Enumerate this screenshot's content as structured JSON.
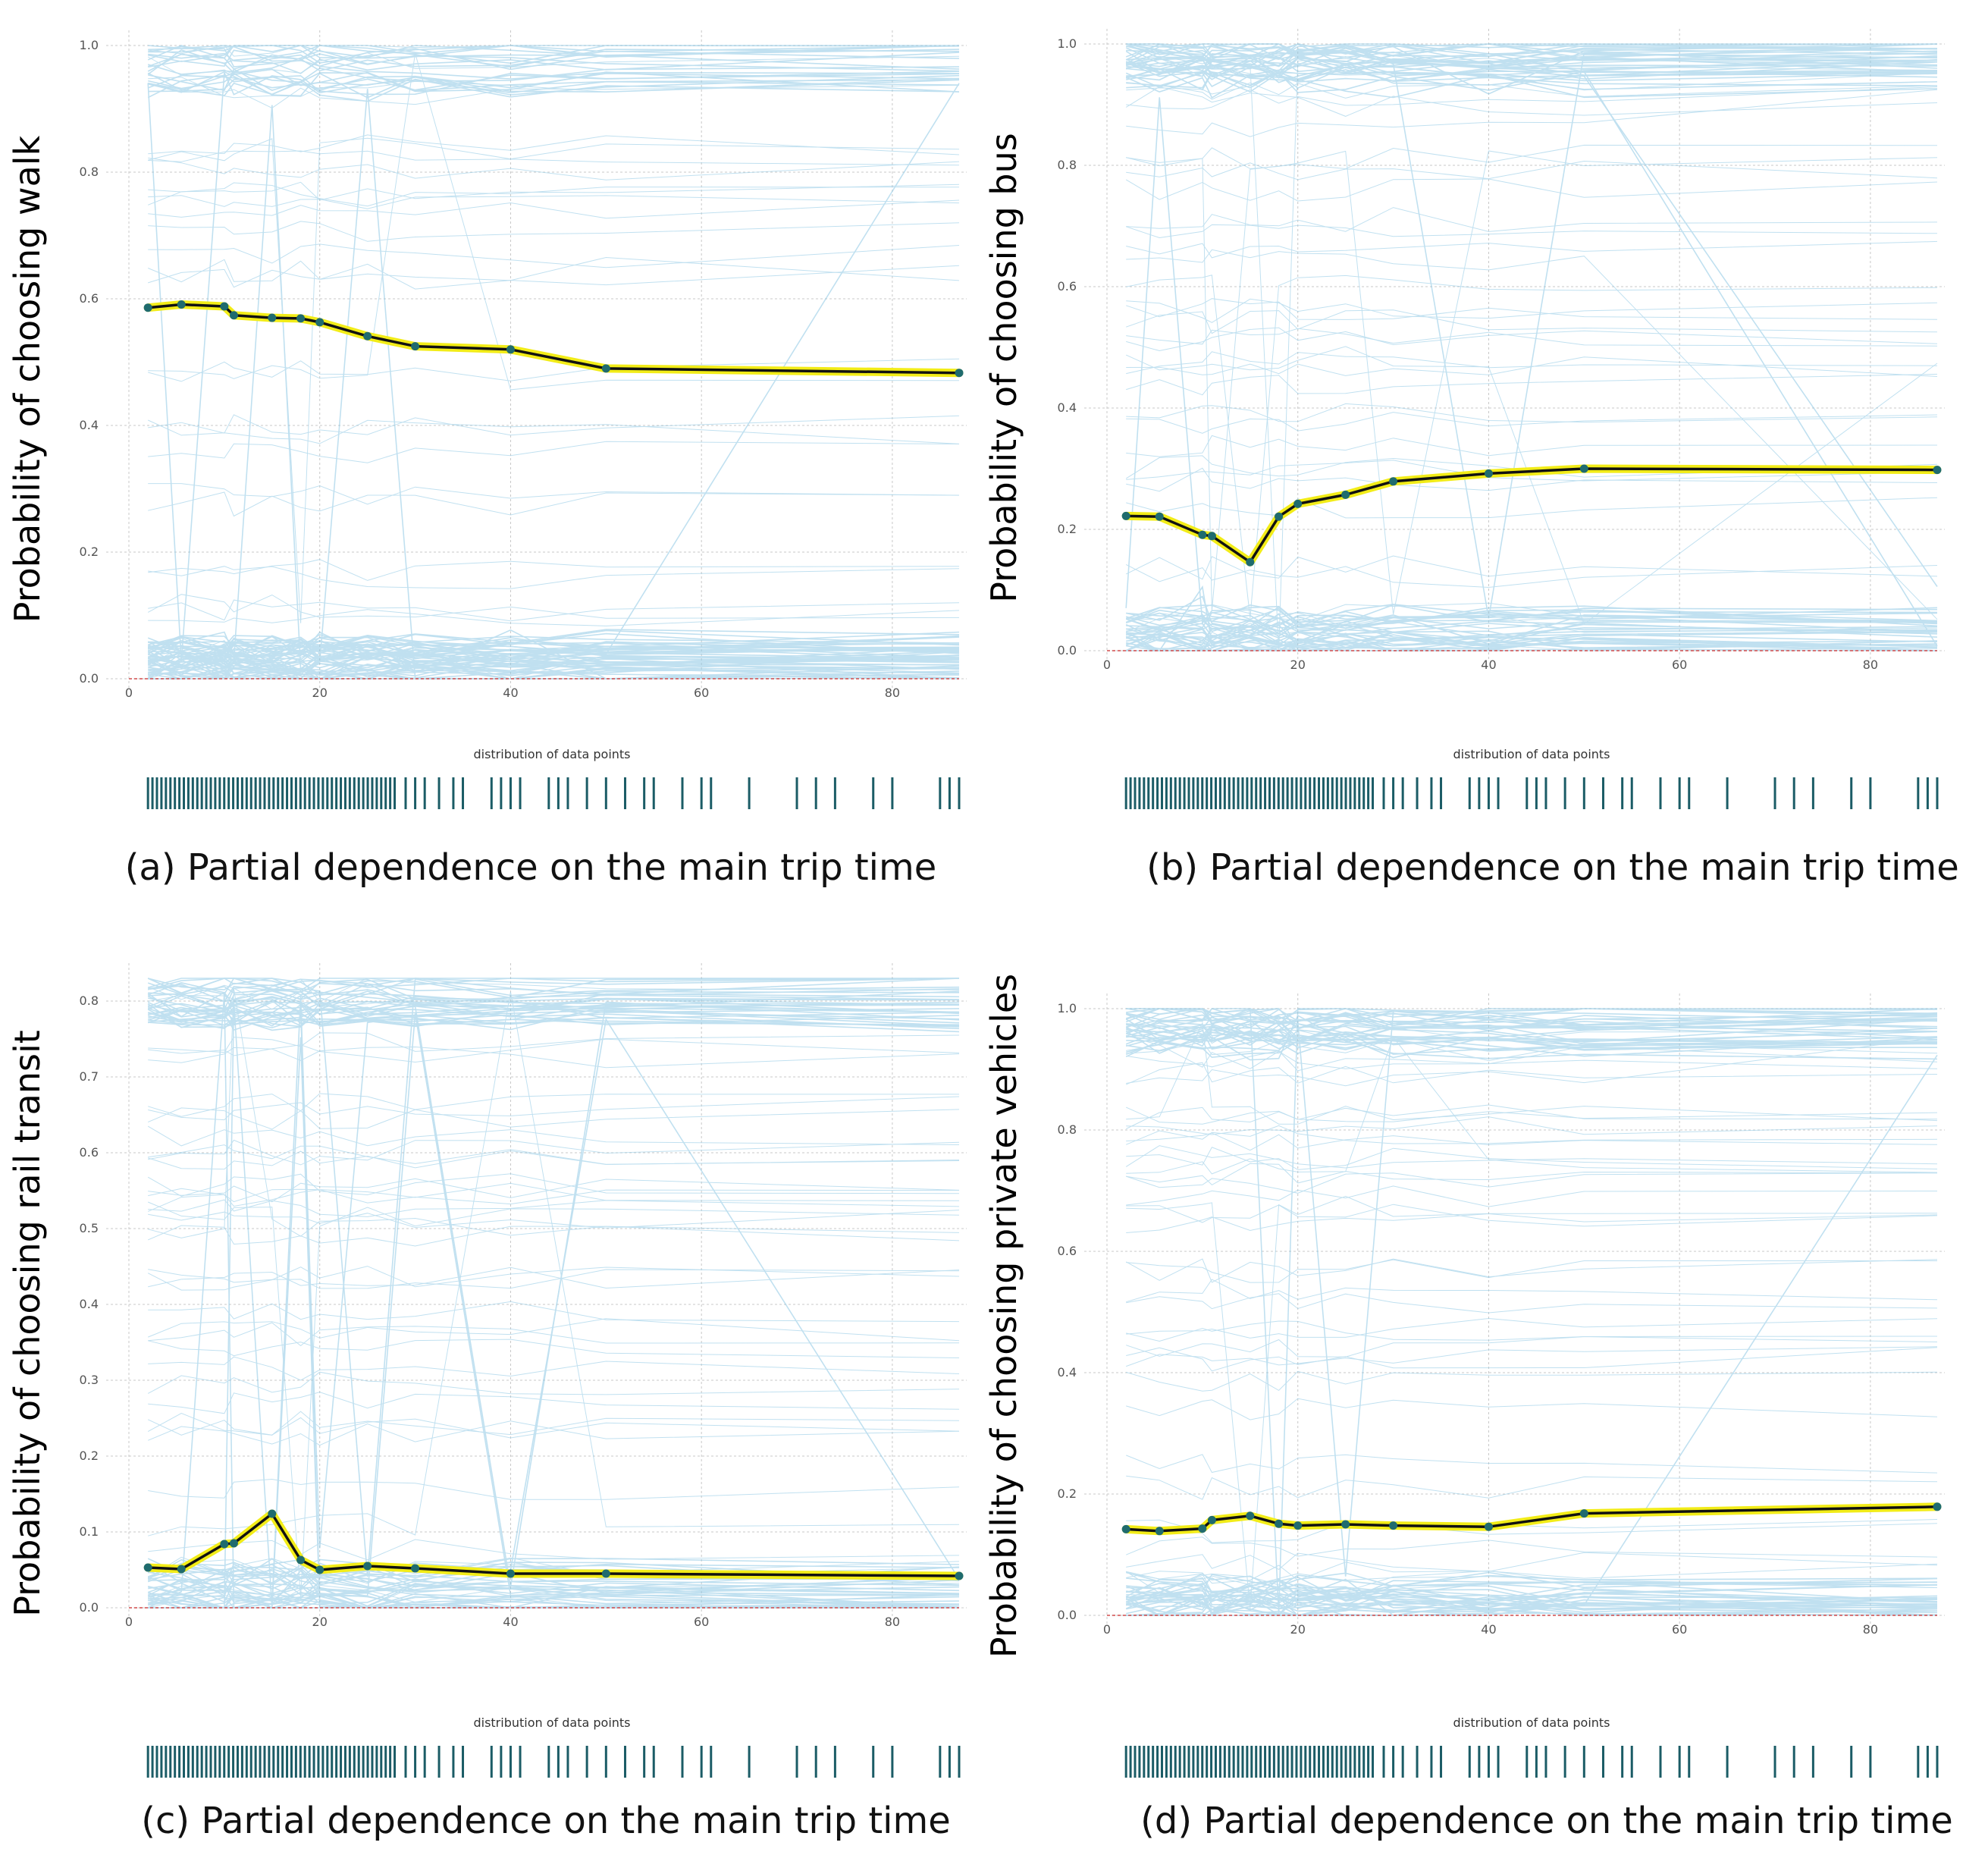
{
  "colors": {
    "ice": "#8ec8e4",
    "pd_glow": "#f2ec18",
    "pd_line": "#111111",
    "pd_marker": "#1f6b6e",
    "rug": "#1b5c66",
    "grid": "#c8c8c8",
    "ref": "#d24b4b"
  },
  "chart_data": [
    {
      "id": "a",
      "type": "line",
      "ylabel": "Probability of choosing walk",
      "caption": "(a) Partial dependence on the main trip time",
      "dist_label": "distribution of data points",
      "xlim": [
        0,
        87
      ],
      "ylim": [
        0,
        1.0
      ],
      "xticks": [
        0,
        20,
        40,
        60,
        80
      ],
      "yticks": [
        0.0,
        0.2,
        0.4,
        0.6,
        0.8,
        1.0
      ],
      "ytick_labels": [
        "0.0",
        "0.2",
        "0.4",
        "0.6",
        "0.8",
        "1.0"
      ],
      "x": [
        2,
        5.5,
        10,
        11,
        15,
        18,
        20,
        25,
        30,
        40,
        50,
        87
      ],
      "pd": [
        0.586,
        0.591,
        0.588,
        0.574,
        0.57,
        0.569,
        0.563,
        0.541,
        0.525,
        0.52,
        0.49,
        0.483
      ]
    },
    {
      "id": "b",
      "type": "line",
      "ylabel": "Probability of choosing bus",
      "caption": "(b) Partial dependence on the main trip time",
      "dist_label": "distribution of data points",
      "xlim": [
        0,
        87
      ],
      "ylim": [
        0,
        1.0
      ],
      "xticks": [
        0,
        20,
        40,
        60,
        80
      ],
      "yticks": [
        0.0,
        0.2,
        0.4,
        0.6,
        0.8,
        1.0
      ],
      "ytick_labels": [
        "0.0",
        "0.2",
        "0.4",
        "0.6",
        "0.8",
        "1.0"
      ],
      "x": [
        2,
        5.5,
        10,
        11,
        15,
        18,
        20,
        25,
        30,
        40,
        50,
        87
      ],
      "pd": [
        0.222,
        0.221,
        0.191,
        0.189,
        0.146,
        0.221,
        0.242,
        0.257,
        0.279,
        0.292,
        0.3,
        0.298
      ]
    },
    {
      "id": "c",
      "type": "line",
      "ylabel": "Probability of choosing rail transit",
      "caption": "(c) Partial dependence on the main trip time",
      "dist_label": "distribution of data points",
      "xlim": [
        0,
        87
      ],
      "ylim": [
        0,
        0.83
      ],
      "xticks": [
        0,
        20,
        40,
        60,
        80
      ],
      "yticks": [
        0.0,
        0.1,
        0.2,
        0.3,
        0.4,
        0.5,
        0.6,
        0.7,
        0.8
      ],
      "ytick_labels": [
        "0.0",
        "0.1",
        "0.2",
        "0.3",
        "0.4",
        "0.5",
        "0.6",
        "0.7",
        "0.8"
      ],
      "x": [
        2,
        5.5,
        10,
        11,
        15,
        18,
        20,
        25,
        30,
        40,
        50,
        87
      ],
      "pd": [
        0.053,
        0.051,
        0.084,
        0.085,
        0.124,
        0.063,
        0.05,
        0.055,
        0.052,
        0.045,
        0.045,
        0.042
      ]
    },
    {
      "id": "d",
      "type": "line",
      "ylabel": "Probability of choosing private vehicles",
      "caption": "(d) Partial dependence on the main trip time",
      "dist_label": "distribution of data points",
      "xlim": [
        0,
        87
      ],
      "ylim": [
        0,
        1.0
      ],
      "xticks": [
        0,
        20,
        40,
        60,
        80
      ],
      "yticks": [
        0.0,
        0.2,
        0.4,
        0.6,
        0.8,
        1.0
      ],
      "ytick_labels": [
        "0.0",
        "0.2",
        "0.4",
        "0.6",
        "0.8",
        "1.0"
      ],
      "x": [
        2,
        5.5,
        10,
        11,
        15,
        18,
        20,
        25,
        30,
        40,
        50,
        87
      ],
      "pd": [
        0.142,
        0.139,
        0.143,
        0.157,
        0.164,
        0.151,
        0.148,
        0.15,
        0.148,
        0.146,
        0.168,
        0.179
      ]
    }
  ]
}
